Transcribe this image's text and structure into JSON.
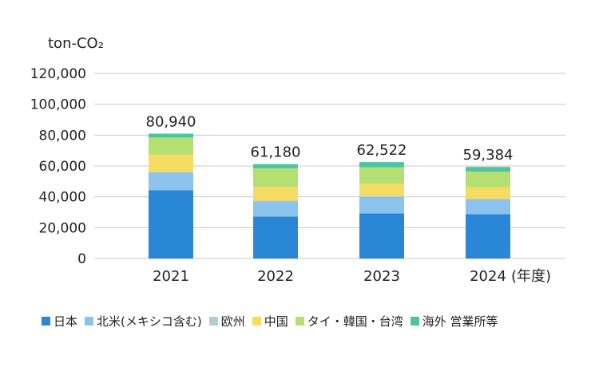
{
  "chart_data": {
    "type": "bar",
    "stacked": true,
    "title": "",
    "unit_label": "ton-CO₂",
    "xlabel": "(年度)",
    "ylabel": "",
    "ylim": [
      0,
      120000
    ],
    "yticks": [
      0,
      20000,
      40000,
      60000,
      80000,
      100000,
      120000
    ],
    "ytick_labels": [
      "0",
      "20,000",
      "40,000",
      "60,000",
      "80,000",
      "100,000",
      "120,000"
    ],
    "grid": true,
    "legend_position": "bottom",
    "categories": [
      "2021",
      "2022",
      "2023",
      "2024"
    ],
    "totals": [
      80940,
      61180,
      62522,
      59384
    ],
    "total_labels": [
      "80,940",
      "61,180",
      "62,522",
      "59,384"
    ],
    "series": [
      {
        "name": "日本",
        "color": "#2a87d8",
        "values": [
          44300,
          27200,
          29200,
          28800
        ]
      },
      {
        "name": "北米(メキシコ含む)",
        "color": "#8cc3ec",
        "values": [
          11300,
          9800,
          10800,
          9500
        ]
      },
      {
        "name": "欧州",
        "color": "#b3cdd6",
        "values": [
          600,
          500,
          500,
          500
        ]
      },
      {
        "name": "中国",
        "color": "#f5dc60",
        "values": [
          11200,
          9000,
          7800,
          7400
        ]
      },
      {
        "name": "タイ・韓国・台湾",
        "color": "#b5df70",
        "values": [
          11040,
          11880,
          10822,
          10084
        ]
      },
      {
        "name": "海外 営業所等",
        "color": "#4cc5a0",
        "values": [
          2500,
          2800,
          3400,
          3100
        ]
      }
    ]
  }
}
